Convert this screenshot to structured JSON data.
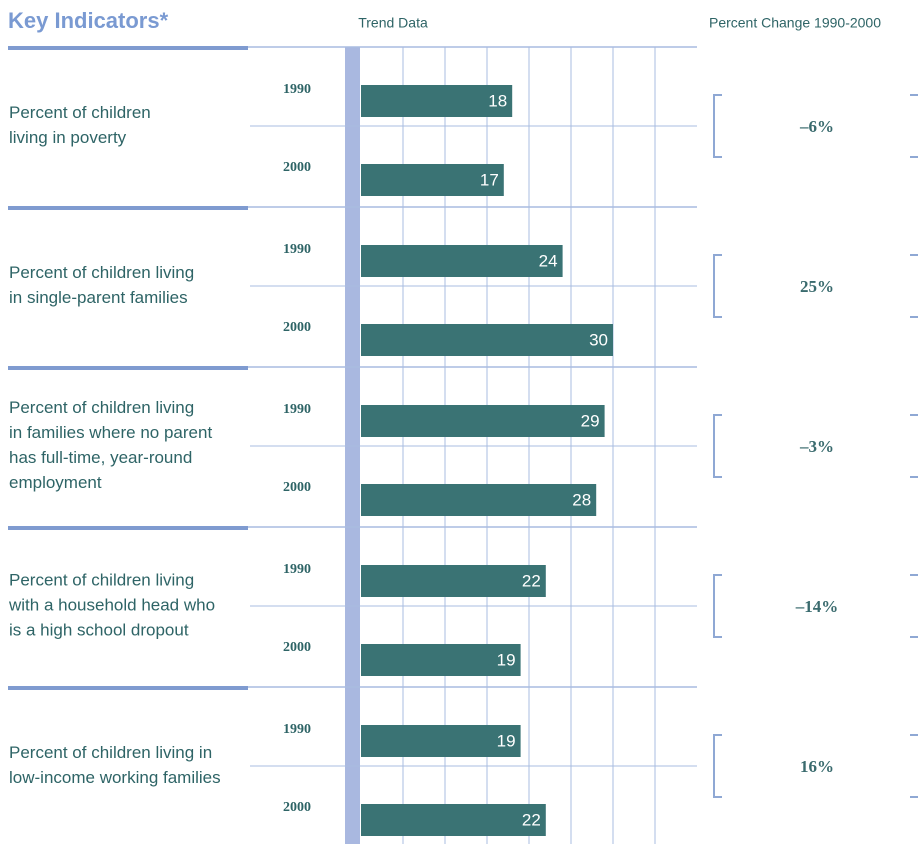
{
  "chart_data": {
    "type": "bar",
    "title": "Key Indicators*",
    "trend_header": "Trend Data",
    "categories": [
      [
        "Percent of children",
        "living in poverty"
      ],
      [
        "Percent of children living",
        "in single-parent families"
      ],
      [
        "Percent of children living",
        "in families where no parent",
        "has full-time, year-round",
        "employment"
      ],
      [
        "Percent of children living",
        "with a household head who",
        "is a high school dropout"
      ],
      [
        "Percent of children living in",
        "low-income working families"
      ]
    ],
    "series": [
      {
        "name": "1990",
        "color": "#3a7374",
        "values": [
          18,
          24,
          29,
          22,
          19
        ]
      },
      {
        "name": "2000",
        "color": "#3a7374",
        "values": [
          17,
          30,
          28,
          19,
          22
        ]
      }
    ],
    "percent_change": {
      "name": "Percent Change 1990-2000",
      "values": [
        -6,
        25,
        -3,
        -14,
        16
      ],
      "value_labels": [
        "–6%",
        "25%",
        "–3%",
        "–14%",
        "16%"
      ]
    },
    "xlim": [
      0,
      40
    ],
    "xticks": [
      5,
      10,
      15,
      20,
      25,
      30,
      35
    ],
    "grid": true
  }
}
